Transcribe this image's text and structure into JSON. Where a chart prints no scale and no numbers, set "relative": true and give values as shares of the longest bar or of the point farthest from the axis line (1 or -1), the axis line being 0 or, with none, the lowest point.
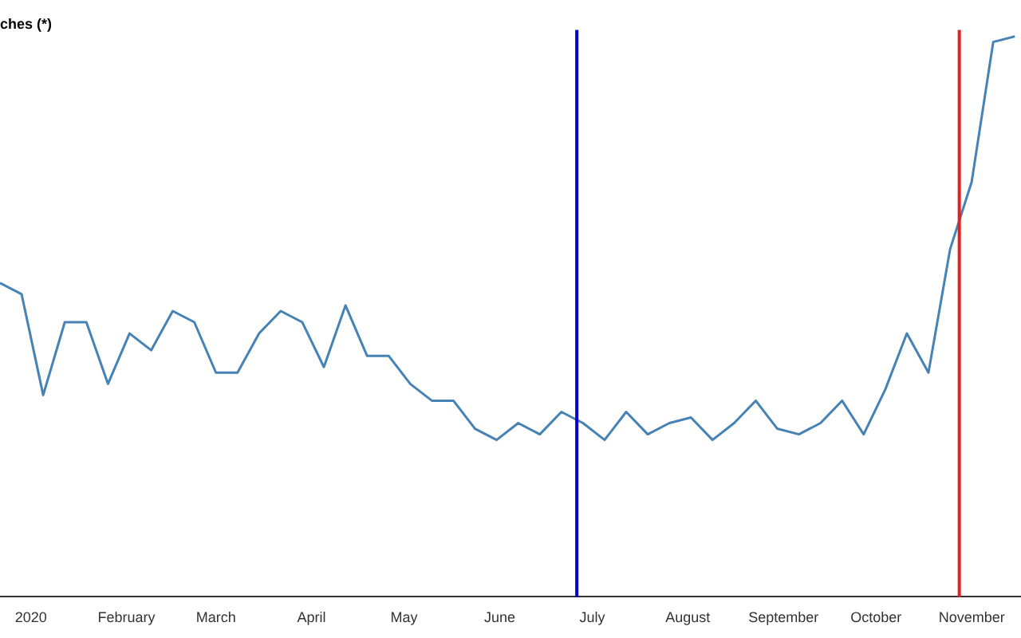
{
  "chart_data": {
    "type": "line",
    "title": "ches (*)",
    "relative": true,
    "legend": false,
    "grid": false,
    "marker": "none",
    "x": [
      "2019-12-22",
      "2019-12-29",
      "2020-01-05",
      "2020-01-12",
      "2020-01-19",
      "2020-01-26",
      "2020-02-02",
      "2020-02-09",
      "2020-02-16",
      "2020-02-23",
      "2020-03-01",
      "2020-03-08",
      "2020-03-15",
      "2020-03-22",
      "2020-03-29",
      "2020-04-05",
      "2020-04-12",
      "2020-04-19",
      "2020-04-26",
      "2020-05-03",
      "2020-05-10",
      "2020-05-17",
      "2020-05-24",
      "2020-05-31",
      "2020-06-07",
      "2020-06-14",
      "2020-06-21",
      "2020-06-28",
      "2020-07-05",
      "2020-07-12",
      "2020-07-19",
      "2020-07-26",
      "2020-08-02",
      "2020-08-09",
      "2020-08-16",
      "2020-08-23",
      "2020-08-30",
      "2020-09-06",
      "2020-09-13",
      "2020-09-20",
      "2020-09-27",
      "2020-10-04",
      "2020-10-11",
      "2020-10-18",
      "2020-10-25",
      "2020-11-01",
      "2020-11-08",
      "2020-11-15"
    ],
    "series": [
      {
        "color": "#4682b4",
        "values": [
          0.56,
          0.54,
          0.36,
          0.49,
          0.49,
          0.38,
          0.47,
          0.44,
          0.51,
          0.49,
          0.4,
          0.4,
          0.47,
          0.51,
          0.49,
          0.41,
          0.52,
          0.43,
          0.43,
          0.38,
          0.35,
          0.35,
          0.3,
          0.28,
          0.31,
          0.29,
          0.33,
          0.31,
          0.28,
          0.33,
          0.29,
          0.31,
          0.32,
          0.28,
          0.31,
          0.35,
          0.3,
          0.29,
          0.31,
          0.35,
          0.29,
          0.37,
          0.47,
          0.4,
          0.62,
          0.74,
          0.99,
          1
        ]
      }
    ],
    "xlim": [
      "2019-12-22",
      "2020-11-17"
    ],
    "xticks": [
      {
        "value": "2020-01-01",
        "label": "2020"
      },
      {
        "value": "2020-02-01",
        "label": "February"
      },
      {
        "value": "2020-03-01",
        "label": "March"
      },
      {
        "value": "2020-04-01",
        "label": "April"
      },
      {
        "value": "2020-05-01",
        "label": "May"
      },
      {
        "value": "2020-06-01",
        "label": "June"
      },
      {
        "value": "2020-07-01",
        "label": "July"
      },
      {
        "value": "2020-08-01",
        "label": "August"
      },
      {
        "value": "2020-09-01",
        "label": "September"
      },
      {
        "value": "2020-10-01",
        "label": "October"
      },
      {
        "value": "2020-11-01",
        "label": "November"
      }
    ],
    "ref_lines": [
      {
        "axis": "x",
        "value": "2020-06-26",
        "color": "#0000cc"
      },
      {
        "axis": "x",
        "value": "2020-10-28",
        "color": "#dd2222"
      }
    ]
  }
}
